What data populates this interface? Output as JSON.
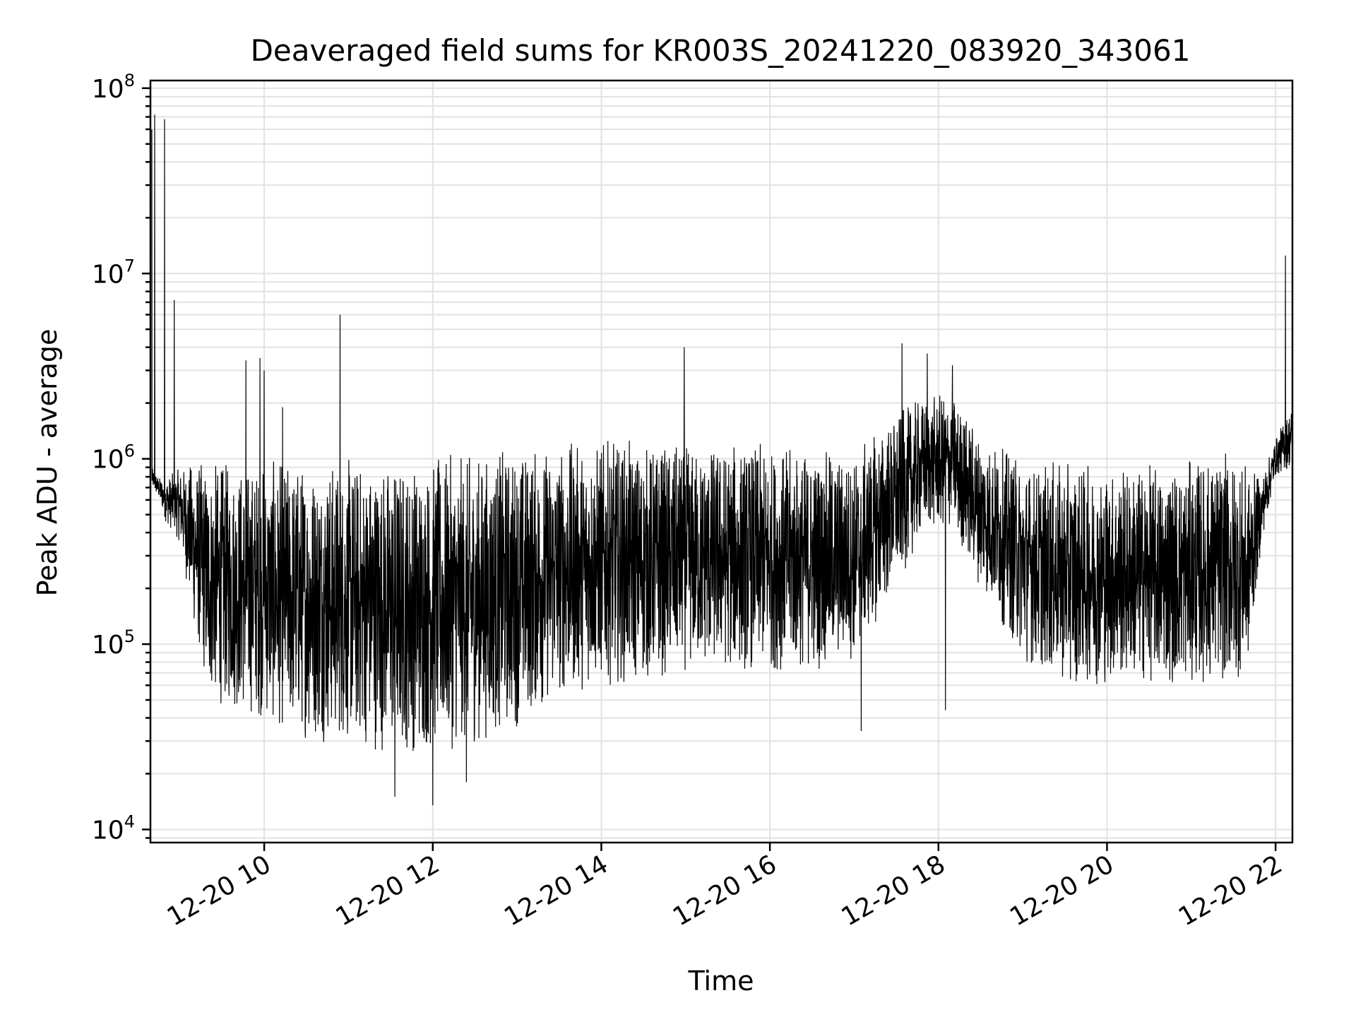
{
  "chart_data": {
    "type": "line",
    "title": "Deaveraged field sums for KR003S_20241220_083920_343061",
    "xlabel": "Time",
    "ylabel": "Peak ADU - average",
    "yscale": "log",
    "grid": true,
    "legend": "none",
    "xlim": [
      "2024-12-20T08:39",
      "2024-12-20T22:12"
    ],
    "ylim": [
      8500,
      110000000
    ],
    "x_ticks": [
      "2024-12-20T10:00",
      "2024-12-20T12:00",
      "2024-12-20T14:00",
      "2024-12-20T16:00",
      "2024-12-20T18:00",
      "2024-12-20T20:00",
      "2024-12-20T22:00"
    ],
    "x_tick_labels": [
      "12-20 10",
      "12-20 12",
      "12-20 14",
      "12-20 16",
      "12-20 18",
      "12-20 20",
      "12-20 22"
    ],
    "y_ticks": [
      10000,
      100000,
      1000000,
      10000000,
      100000000
    ],
    "y_tick_labels": [
      {
        "base": "10",
        "exp": "4"
      },
      {
        "base": "10",
        "exp": "5"
      },
      {
        "base": "10",
        "exp": "6"
      },
      {
        "base": "10",
        "exp": "7"
      },
      {
        "base": "10",
        "exp": "8"
      }
    ],
    "line_color": "#000000",
    "envelope": {
      "x": [
        "2024-12-20T08:40",
        "2024-12-20T08:45",
        "2024-12-20T08:50",
        "2024-12-20T09:00",
        "2024-12-20T09:10",
        "2024-12-20T09:20",
        "2024-12-20T09:30",
        "2024-12-20T09:45",
        "2024-12-20T09:55",
        "2024-12-20T10:05",
        "2024-12-20T10:30",
        "2024-12-20T11:00",
        "2024-12-20T11:30",
        "2024-12-20T12:00",
        "2024-12-20T12:30",
        "2024-12-20T13:00",
        "2024-12-20T13:30",
        "2024-12-20T14:00",
        "2024-12-20T14:30",
        "2024-12-20T15:00",
        "2024-12-20T15:30",
        "2024-12-20T16:00",
        "2024-12-20T16:30",
        "2024-12-20T17:00",
        "2024-12-20T17:30",
        "2024-12-20T17:50",
        "2024-12-20T18:10",
        "2024-12-20T18:30",
        "2024-12-20T19:00",
        "2024-12-20T19:30",
        "2024-12-20T20:00",
        "2024-12-20T20:30",
        "2024-12-20T21:00",
        "2024-12-20T21:30",
        "2024-12-20T21:40",
        "2024-12-20T21:50",
        "2024-12-20T22:00",
        "2024-12-20T22:12"
      ],
      "low": [
        700000,
        600000,
        450000,
        350000,
        120000,
        50000,
        45000,
        40000,
        40000,
        35000,
        30000,
        28000,
        25000,
        25000,
        28000,
        35000,
        50000,
        60000,
        60000,
        70000,
        70000,
        70000,
        70000,
        80000,
        200000,
        400000,
        400000,
        200000,
        80000,
        60000,
        60000,
        60000,
        60000,
        60000,
        70000,
        350000,
        800000,
        900000
      ],
      "high": [
        900000,
        800000,
        800000,
        900000,
        1000000,
        1000000,
        1000000,
        1000000,
        1000000,
        1000000,
        1050000,
        1050000,
        1050000,
        1050000,
        1100000,
        1200000,
        1250000,
        1300000,
        1250000,
        1200000,
        1250000,
        1200000,
        1150000,
        1100000,
        1800000,
        2200000,
        2300000,
        1400000,
        1000000,
        950000,
        950000,
        950000,
        1000000,
        1100000,
        900000,
        800000,
        1300000,
        2000000
      ]
    },
    "spikes": [
      {
        "x": "2024-12-20T08:40",
        "y": 60000000
      },
      {
        "x": "2024-12-20T08:42",
        "y": 72000000
      },
      {
        "x": "2024-12-20T08:49",
        "y": 68000000
      },
      {
        "x": "2024-12-20T08:56",
        "y": 7200000
      },
      {
        "x": "2024-12-20T09:47",
        "y": 3400000
      },
      {
        "x": "2024-12-20T09:57",
        "y": 3500000
      },
      {
        "x": "2024-12-20T10:00",
        "y": 3000000
      },
      {
        "x": "2024-12-20T10:13",
        "y": 1900000
      },
      {
        "x": "2024-12-20T10:54",
        "y": 6000000
      },
      {
        "x": "2024-12-20T14:59",
        "y": 4000000
      },
      {
        "x": "2024-12-20T17:34",
        "y": 4200000
      },
      {
        "x": "2024-12-20T17:52",
        "y": 3700000
      },
      {
        "x": "2024-12-20T18:10",
        "y": 3200000
      },
      {
        "x": "2024-12-20T22:07",
        "y": 12500000
      }
    ],
    "dips": [
      {
        "x": "2024-12-20T11:33",
        "y": 15000.0
      },
      {
        "x": "2024-12-20T12:00",
        "y": 13500
      },
      {
        "x": "2024-12-20T12:24",
        "y": 18000
      },
      {
        "x": "2024-12-20T17:05",
        "y": 34000
      },
      {
        "x": "2024-12-20T18:05",
        "y": 44000
      }
    ]
  }
}
